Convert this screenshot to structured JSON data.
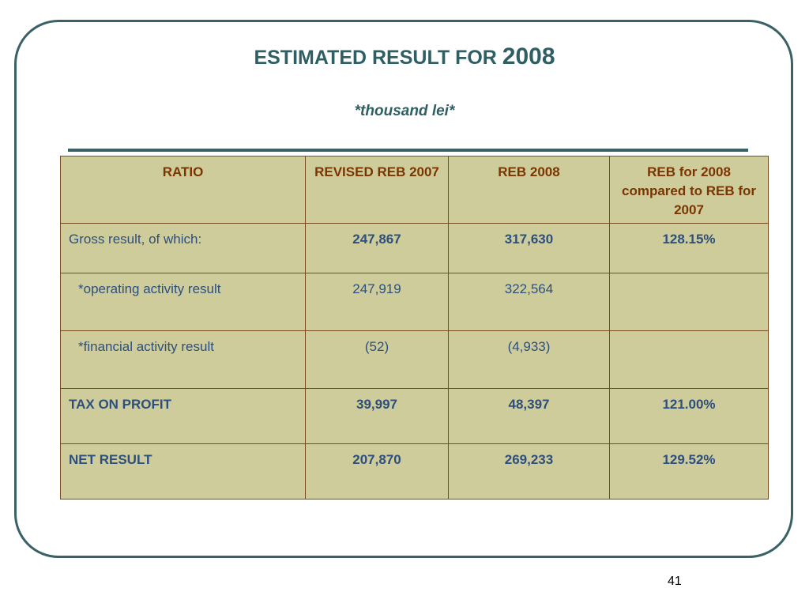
{
  "title": {
    "main": "ESTIMATED RESULT FOR ",
    "year": "2008"
  },
  "subtitle": "*thousand lei*",
  "table": {
    "headers": [
      "RATIO",
      "REVISED REB 2007",
      "REB 2008",
      "REB for 2008 compared to REB for 2007"
    ],
    "rows": [
      [
        "Gross result, of which:",
        "247,867",
        "317,630",
        "128.15%"
      ],
      [
        "*operating activity result",
        "247,919",
        "322,564",
        ""
      ],
      [
        "*financial activity result",
        "(52)",
        "(4,933)",
        ""
      ],
      [
        "TAX ON PROFIT",
        "39,997",
        "48,397",
        "121.00%"
      ],
      [
        "NET RESULT",
        "207,870",
        "269,233",
        "129.52%"
      ]
    ]
  },
  "page_number": "41",
  "colors": {
    "accent": "#2f5f63",
    "table_bg": "#cfcc9c",
    "header_text": "#7a3500",
    "cell_text": "#2c4f7e"
  }
}
